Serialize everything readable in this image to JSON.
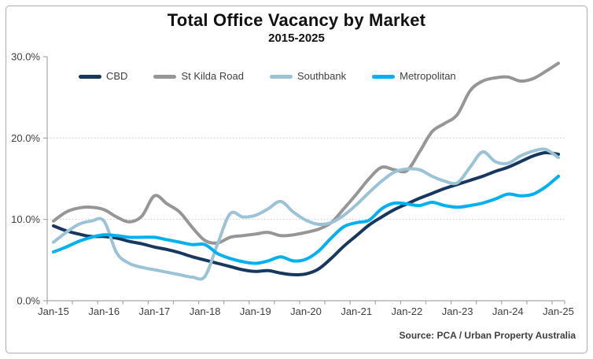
{
  "chart_data": {
    "type": "line",
    "title": "Total Office Vacancy by Market",
    "subtitle": "2015-2025",
    "source_note": "Source: PCA / Urban Property Australia",
    "x": [
      "Jan-15",
      "Apr-15",
      "Jul-15",
      "Oct-15",
      "Jan-16",
      "Apr-16",
      "Jul-16",
      "Oct-16",
      "Jan-17",
      "Apr-17",
      "Jul-17",
      "Oct-17",
      "Jan-18",
      "Apr-18",
      "Jul-18",
      "Oct-18",
      "Jan-19",
      "Apr-19",
      "Jul-19",
      "Oct-19",
      "Jan-20",
      "Apr-20",
      "Jul-20",
      "Oct-20",
      "Jan-21",
      "Apr-21",
      "Jul-21",
      "Oct-21",
      "Jan-22",
      "Apr-22",
      "Jul-22",
      "Oct-22",
      "Jan-23",
      "Apr-23",
      "Jul-23",
      "Oct-23",
      "Jan-24",
      "Apr-24",
      "Jul-24",
      "Oct-24",
      "Jan-25"
    ],
    "x_tick_labels": [
      "Jan-15",
      "Jan-16",
      "Jan-17",
      "Jan-18",
      "Jan-19",
      "Jan-20",
      "Jan-21",
      "Jan-22",
      "Jan-23",
      "Jan-24",
      "Jan-25"
    ],
    "y_tick_labels": [
      "0.0%",
      "10.0%",
      "20.0%",
      "30.0%"
    ],
    "ylim": [
      0,
      30
    ],
    "y_unit": "percent",
    "y_gridlines_at": [
      10,
      20
    ],
    "x_minor_ticks": "semiannual",
    "legend_position": "top",
    "series": [
      {
        "name": "CBD",
        "color": "#17375D",
        "values": [
          9.2,
          8.6,
          8.2,
          7.9,
          7.9,
          7.7,
          7.3,
          7.0,
          6.6,
          6.3,
          5.9,
          5.4,
          5.0,
          4.6,
          4.2,
          3.8,
          3.6,
          3.7,
          3.4,
          3.2,
          3.3,
          3.9,
          5.2,
          6.7,
          8.0,
          9.3,
          10.3,
          11.2,
          11.9,
          12.6,
          13.2,
          13.8,
          14.3,
          14.8,
          15.3,
          15.9,
          16.4,
          17.1,
          17.8,
          18.2,
          18.0
        ]
      },
      {
        "name": "St Kilda Road",
        "color": "#969696",
        "values": [
          9.8,
          10.9,
          11.4,
          11.5,
          11.2,
          10.3,
          9.7,
          10.4,
          12.9,
          11.9,
          10.9,
          9.0,
          7.4,
          7.1,
          7.8,
          8.0,
          8.2,
          8.4,
          8.0,
          8.1,
          8.4,
          8.8,
          9.6,
          11.3,
          13.1,
          15.0,
          16.4,
          16.1,
          16.0,
          18.3,
          20.8,
          21.8,
          22.9,
          25.8,
          27.0,
          27.4,
          27.5,
          27.0,
          27.3,
          28.2,
          29.2
        ]
      },
      {
        "name": "Southbank",
        "color": "#9CC3D5",
        "values": [
          7.2,
          8.4,
          9.4,
          9.8,
          9.8,
          5.9,
          4.6,
          4.1,
          3.8,
          3.5,
          3.2,
          2.9,
          3.0,
          7.0,
          10.7,
          10.3,
          10.5,
          11.3,
          12.2,
          10.9,
          9.9,
          9.4,
          9.6,
          10.5,
          11.8,
          13.3,
          14.7,
          15.8,
          16.2,
          16.1,
          15.3,
          14.7,
          14.5,
          16.4,
          18.3,
          17.1,
          16.9,
          17.8,
          18.4,
          18.6,
          17.6
        ]
      },
      {
        "name": "Metropolitan",
        "color": "#00B0F0",
        "values": [
          6.0,
          6.6,
          7.3,
          7.8,
          8.1,
          8.0,
          7.8,
          7.8,
          7.8,
          7.5,
          7.2,
          6.9,
          6.9,
          5.8,
          5.2,
          4.8,
          4.6,
          4.9,
          5.4,
          4.9,
          5.1,
          6.1,
          7.7,
          9.1,
          9.6,
          9.9,
          11.3,
          12.0,
          11.9,
          11.7,
          12.1,
          11.7,
          11.5,
          11.7,
          12.0,
          12.5,
          13.1,
          12.9,
          13.1,
          14.0,
          15.3
        ]
      }
    ]
  },
  "style_colors": {
    "axis": "#A6A6A6",
    "grid": "#C6C6C6",
    "tick_text": "#404040",
    "title_text": "#111111",
    "frame_border": "#ABABAB",
    "background": "#FFFFFF"
  }
}
